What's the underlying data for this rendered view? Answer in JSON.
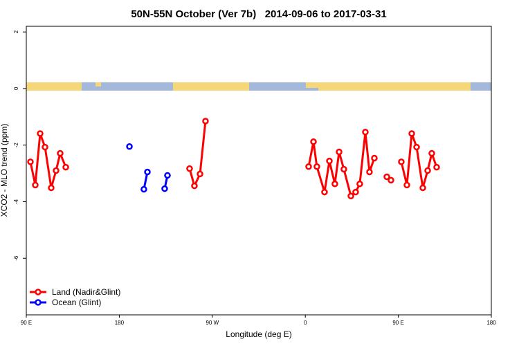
{
  "chart_data": {
    "type": "line",
    "title": "50N-55N October (Ver 7b)   2014-09-06 to 2017-03-31",
    "x_label": "Longitude (deg E)",
    "y_label": "XCO2 - MLO trend (ppm)",
    "xlim": [
      90,
      540
    ],
    "xticks": [
      {
        "value": 90,
        "label": "90 E"
      },
      {
        "value": 180,
        "label": "180"
      },
      {
        "value": 270,
        "label": "90 W"
      },
      {
        "value": 360,
        "label": "0"
      },
      {
        "value": 450,
        "label": "90 E"
      },
      {
        "value": 540,
        "label": "180"
      }
    ],
    "ylim": [
      -8.0,
      2.2
    ],
    "yticks": [
      2,
      0,
      -2,
      -4,
      -6
    ],
    "grid": false,
    "legend": "bottom-left",
    "series": [
      {
        "name": "Land (Nadir&Glint)",
        "color": "#ff0000",
        "x": [
          94.0,
          98.7,
          103.4,
          108.1,
          114.1,
          118.8,
          122.8,
          128.2,
          null,
          248.0,
          252.7,
          258.1,
          263.4,
          null,
          363.2,
          367.9,
          371.2,
          378.6,
          383.3,
          388.6,
          392.7,
          397.3,
          404.1,
          408.7,
          412.7,
          418.1,
          422.1,
          426.8,
          null,
          438.9,
          442.9,
          null,
          452.9,
          458.3,
          463.0,
          467.7,
          473.7,
          478.4,
          482.4,
          487.1
        ],
        "values": [
          -2.59,
          -3.41,
          -1.59,
          -2.07,
          -3.51,
          -2.9,
          -2.29,
          -2.78,
          null,
          -2.83,
          -3.44,
          -3.02,
          -1.15,
          null,
          -2.76,
          -1.88,
          -2.76,
          -3.66,
          -2.56,
          -3.37,
          -2.24,
          -2.85,
          -3.8,
          -3.66,
          -3.37,
          -1.54,
          -2.95,
          -2.46,
          null,
          -3.12,
          -3.24,
          null,
          -2.59,
          -3.41,
          -1.59,
          -2.07,
          -3.51,
          -2.9,
          -2.29,
          -2.78
        ]
      },
      {
        "name": "Ocean (Glint)",
        "color": "#0000ff",
        "x": [
          189.8,
          null,
          203.8,
          207.2,
          null,
          223.9,
          226.6
        ],
        "values": [
          -2.05,
          null,
          -3.56,
          -2.95,
          null,
          -3.54,
          -3.07
        ]
      }
    ]
  }
}
